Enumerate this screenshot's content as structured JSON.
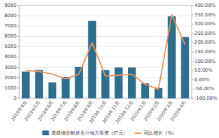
{
  "chart_data": {
    "type": "bar",
    "categories": [
      "2019年4月",
      "2019年5月",
      "2019年6月",
      "2019年7月",
      "2019年8月",
      "2019年9月",
      "2019年10月",
      "2019年11月",
      "2019年12月",
      "2020年1月",
      "2020年2月",
      "2020年3月",
      "2020年4月"
    ],
    "series": [
      {
        "name": "基建细分板块合计地方投资（亿元）",
        "type": "bar",
        "color": "#2E6E8E",
        "values": [
          2600,
          2750,
          1550,
          2050,
          3050,
          7500,
          2750,
          3000,
          3000,
          1450,
          1000,
          7950,
          5950
        ]
      },
      {
        "name": "同比增长（%）",
        "type": "line",
        "axis": "y2",
        "color": "#E8935A",
        "values": [
          50,
          45,
          30,
          5,
          30,
          200,
          20,
          25,
          30,
          -25,
          -50,
          350,
          190
        ]
      }
    ],
    "ylim": [
      0,
      9000
    ],
    "yticks": [
      0,
      1000,
      2000,
      3000,
      4000,
      5000,
      6000,
      7000,
      8000,
      9000
    ],
    "y2lim": [
      -100,
      400
    ],
    "y2ticks": [
      {
        "value": -100,
        "label": "-100.00%"
      },
      {
        "value": -50,
        "label": "-50.00%"
      },
      {
        "value": 0,
        "label": "0.00%"
      },
      {
        "value": 50,
        "label": "50.00%"
      },
      {
        "value": 100,
        "label": "100.00%"
      },
      {
        "value": 150,
        "label": "150.00%"
      },
      {
        "value": 200,
        "label": "200.00%"
      },
      {
        "value": 250,
        "label": "250.00%"
      },
      {
        "value": 300,
        "label": "300.00%"
      },
      {
        "value": 350,
        "label": "350.00%"
      },
      {
        "value": 400,
        "label": "400.00%"
      }
    ],
    "grid": true,
    "legend": "bottom"
  }
}
